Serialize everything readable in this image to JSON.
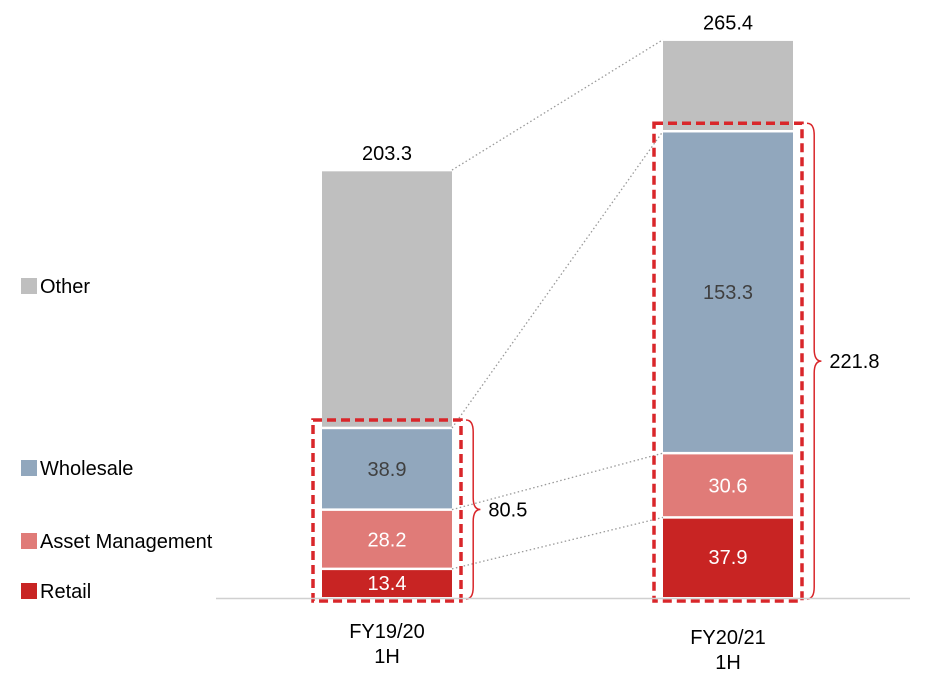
{
  "chart_data": {
    "type": "bar",
    "stacked": true,
    "title": "",
    "xlabel": "",
    "ylabel": "",
    "ylim": [
      0,
      280
    ],
    "grid": false,
    "legend_position": "left",
    "categories": [
      {
        "line1": "FY19/20",
        "line2": "1H"
      },
      {
        "line1": "FY20/21",
        "line2": "1H"
      }
    ],
    "series": [
      {
        "name": "Retail",
        "color": "#c82423",
        "label_color": "#ffffff",
        "values": [
          13.4,
          37.9
        ]
      },
      {
        "name": "Asset Management",
        "color": "#e07b78",
        "label_color": "#ffffff",
        "values": [
          28.2,
          30.6
        ]
      },
      {
        "name": "Wholesale",
        "color": "#91a7bd",
        "label_color": "#404040",
        "values": [
          38.9,
          153.3
        ]
      },
      {
        "name": "Other",
        "color": "#bfbfbf",
        "label_color": "#404040",
        "values": [
          122.8,
          43.6
        ]
      }
    ],
    "totals": [
      203.3,
      265.4
    ],
    "group_sums": [
      80.5,
      221.8
    ],
    "segment_labels": [
      [
        "13.4",
        "28.2",
        "38.9",
        ""
      ],
      [
        "37.9",
        "30.6",
        "153.3",
        ""
      ]
    ],
    "highlight_color": "#d9262a"
  }
}
